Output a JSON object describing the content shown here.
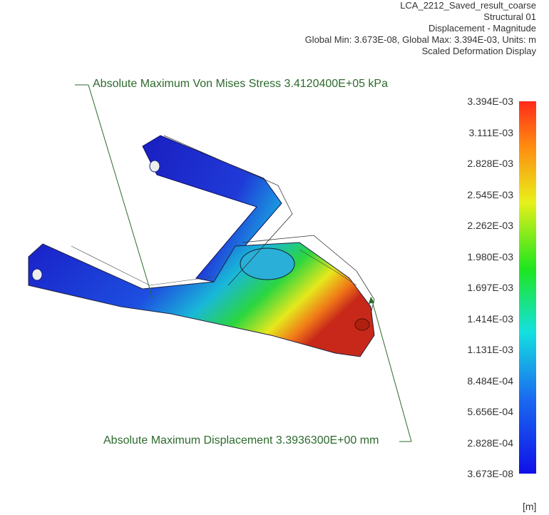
{
  "header": {
    "lines": [
      "LCA_2212_Saved_result_coarse",
      "Structural 01",
      "Displacement - Magnitude",
      "Global Min: 3.673E-08, Global Max: 3.394E-03, Units: m",
      "Scaled Deformation Display"
    ]
  },
  "annotations": [
    "Absolute Maximum Von Mises Stress 3.4120400E+05 kPa",
    "Absolute Maximum Displacement 3.3936300E+00 mm"
  ],
  "legend": {
    "labels": [
      "3.394E-03",
      "3.111E-03",
      "2.828E-03",
      "2.545E-03",
      "2.262E-03",
      "1.980E-03",
      "1.697E-03",
      "1.414E-03",
      "1.131E-03",
      "8.484E-04",
      "5.656E-04",
      "2.828E-04",
      "3.673E-08"
    ],
    "unit": "[m]"
  }
}
